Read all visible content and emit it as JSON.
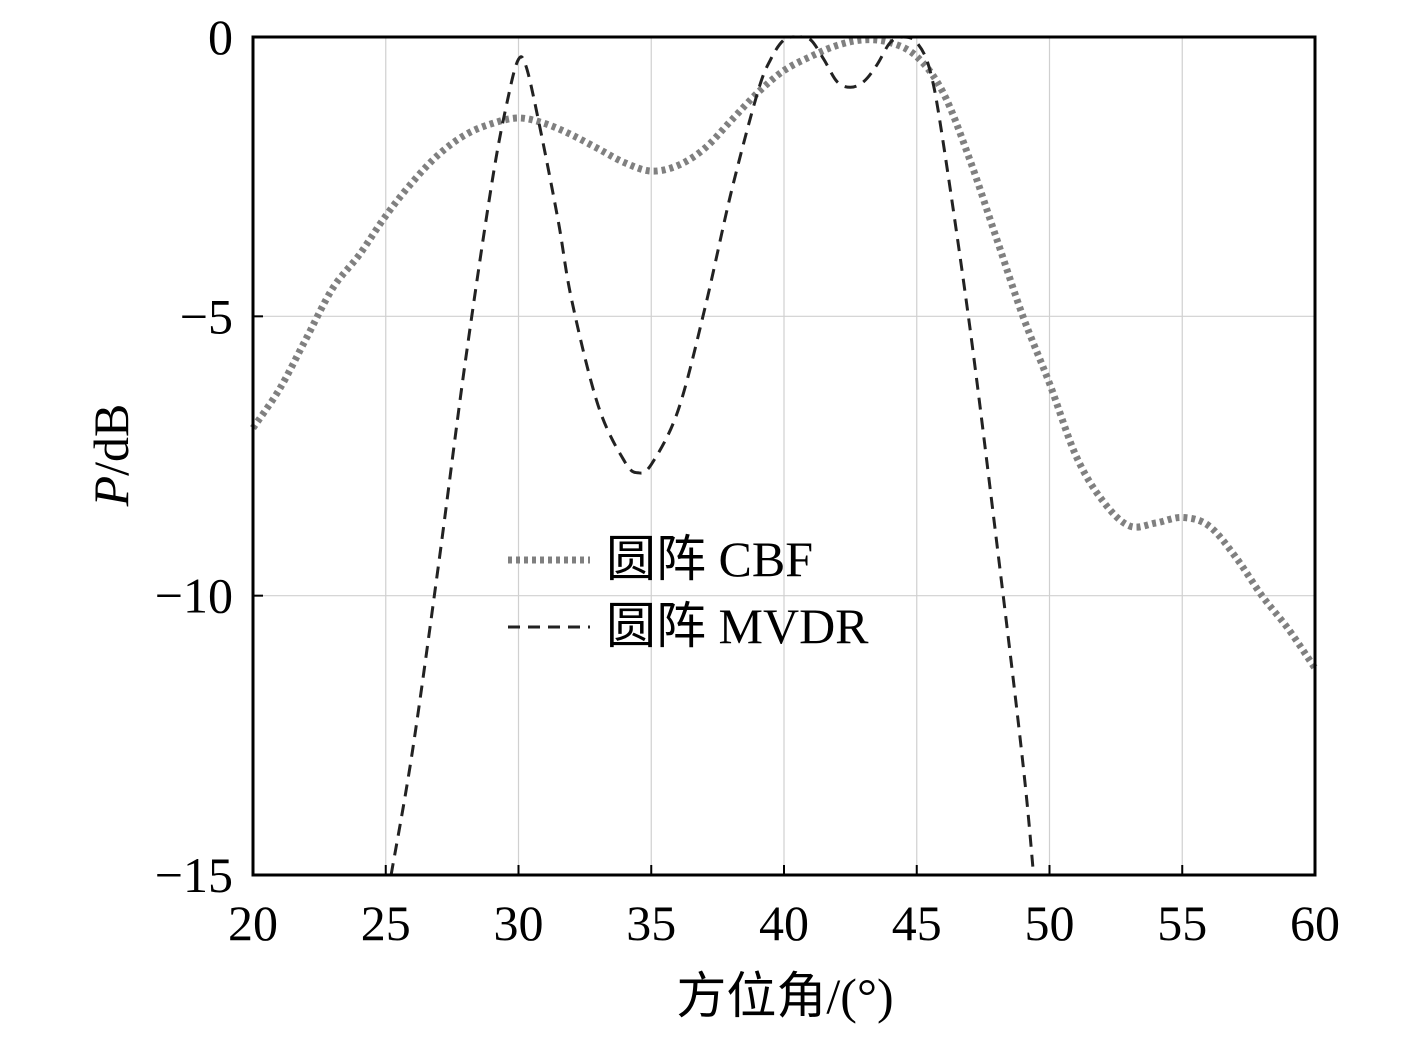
{
  "chart_data": {
    "type": "line",
    "title": "",
    "xlabel": "方位角/(°)",
    "ylabel_italic": "P",
    "ylabel_rest": "/dB",
    "xlim": [
      20,
      60
    ],
    "ylim": [
      -15,
      0
    ],
    "xticks": [
      20,
      25,
      30,
      35,
      40,
      45,
      50,
      55,
      60
    ],
    "yticks": [
      0,
      -5,
      -10,
      -15
    ],
    "ytick_labels": [
      "0",
      "−5",
      "−10",
      "−15"
    ],
    "grid": true,
    "legend_position": "center",
    "series": [
      {
        "name": "圆阵 CBF",
        "color": "#808080",
        "style": "dotted",
        "x": [
          20,
          21,
          22,
          23,
          24,
          25,
          26,
          27,
          28,
          29,
          30,
          31,
          32,
          33,
          34,
          35,
          36,
          37,
          38,
          39,
          40,
          41,
          42,
          43,
          44,
          45,
          46,
          47,
          48,
          49,
          50,
          51,
          52,
          53,
          54,
          55,
          56,
          57,
          58,
          59,
          60
        ],
        "values": [
          -7.0,
          -6.3,
          -5.4,
          -4.5,
          -3.9,
          -3.2,
          -2.6,
          -2.1,
          -1.75,
          -1.55,
          -1.45,
          -1.55,
          -1.75,
          -2.0,
          -2.25,
          -2.4,
          -2.3,
          -2.0,
          -1.5,
          -1.0,
          -0.6,
          -0.35,
          -0.15,
          -0.05,
          -0.1,
          -0.35,
          -1.0,
          -2.2,
          -3.6,
          -5.0,
          -6.2,
          -7.5,
          -8.3,
          -8.75,
          -8.7,
          -8.6,
          -8.75,
          -9.3,
          -10.0,
          -10.6,
          -11.3
        ]
      },
      {
        "name": "圆阵 MVDR",
        "color": "#222222",
        "style": "dashed",
        "x": [
          25.2,
          26,
          27,
          28,
          29,
          29.6,
          30,
          30.3,
          30.8,
          31.5,
          32,
          33,
          34,
          34.5,
          35,
          36,
          37,
          38,
          39,
          39.5,
          40,
          40.5,
          41,
          41.5,
          42,
          42.5,
          43,
          43.5,
          44,
          44.5,
          45,
          45.5,
          46,
          47,
          48,
          49,
          49.4
        ],
        "values": [
          -15,
          -12.8,
          -9.4,
          -5.8,
          -2.6,
          -1.1,
          -0.4,
          -0.55,
          -1.6,
          -3.3,
          -4.7,
          -6.6,
          -7.6,
          -7.8,
          -7.65,
          -6.7,
          -4.9,
          -2.8,
          -1.0,
          -0.4,
          -0.05,
          0,
          -0.05,
          -0.4,
          -0.8,
          -0.9,
          -0.8,
          -0.5,
          -0.1,
          0,
          -0.1,
          -0.6,
          -1.9,
          -5.2,
          -9.0,
          -13.0,
          -15
        ]
      }
    ]
  }
}
